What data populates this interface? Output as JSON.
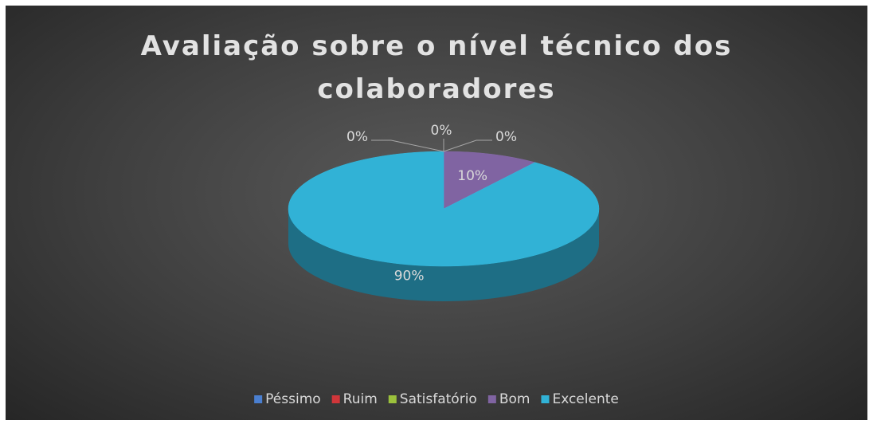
{
  "chart_data": {
    "type": "pie",
    "title": "Avaliação sobre o nível técnico dos colaboradores",
    "categories": [
      "Péssimo",
      "Ruim",
      "Satisfatório",
      "Bom",
      "Excelente"
    ],
    "values": [
      0,
      0,
      0,
      10,
      90
    ],
    "value_labels": [
      "0%",
      "0%",
      "0%",
      "10%",
      "90%"
    ],
    "colors": [
      "#4a7fd0",
      "#d0363a",
      "#9bc13c",
      "#8064a2",
      "#31b2d6"
    ],
    "legend": "bottom",
    "three_d": true
  }
}
